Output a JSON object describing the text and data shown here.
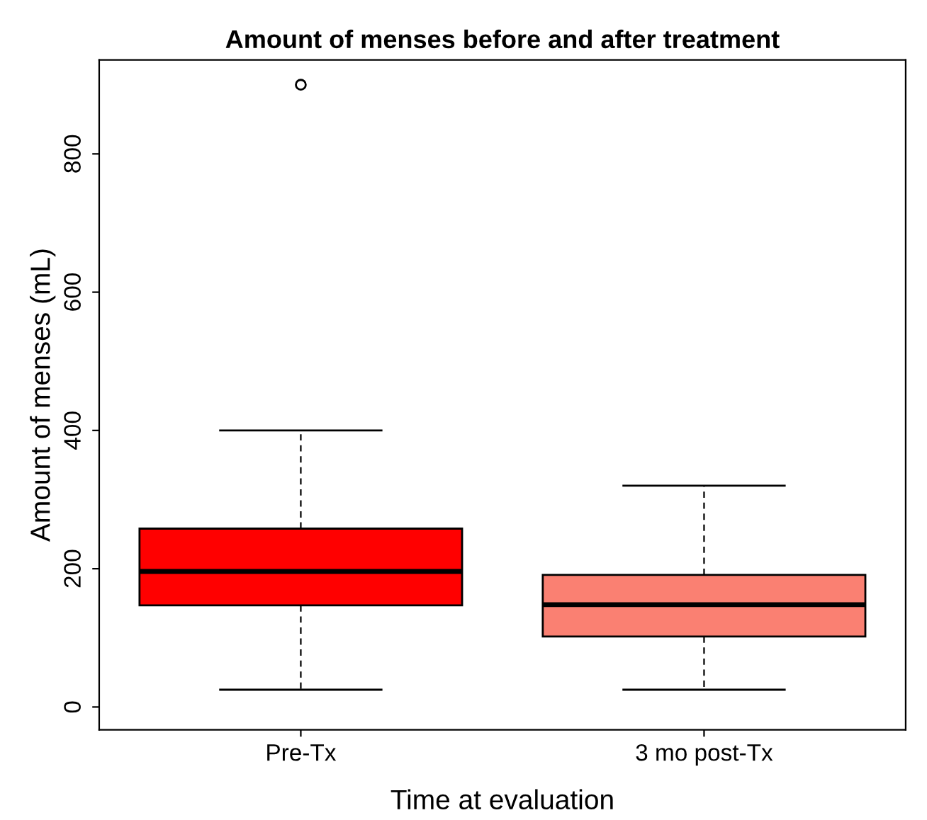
{
  "chart_data": {
    "type": "box",
    "title": "Amount of menses before and after treatment",
    "xlabel": "Time at evaluation",
    "ylabel": "Amount of menses (mL)",
    "categories": [
      "Pre-Tx",
      "3 mo post-Tx"
    ],
    "boxes": [
      {
        "low": 25,
        "q1": 147,
        "median": 196,
        "q3": 258,
        "high": 400,
        "outliers": [
          900
        ]
      },
      {
        "low": 25,
        "q1": 102,
        "median": 148,
        "q3": 191,
        "high": 320
      }
    ],
    "colors": [
      "#ff0000",
      "#fa8072"
    ],
    "ylim": [
      -33,
      936
    ],
    "yticks": [
      0,
      200,
      400,
      600,
      800
    ],
    "grid": false
  }
}
